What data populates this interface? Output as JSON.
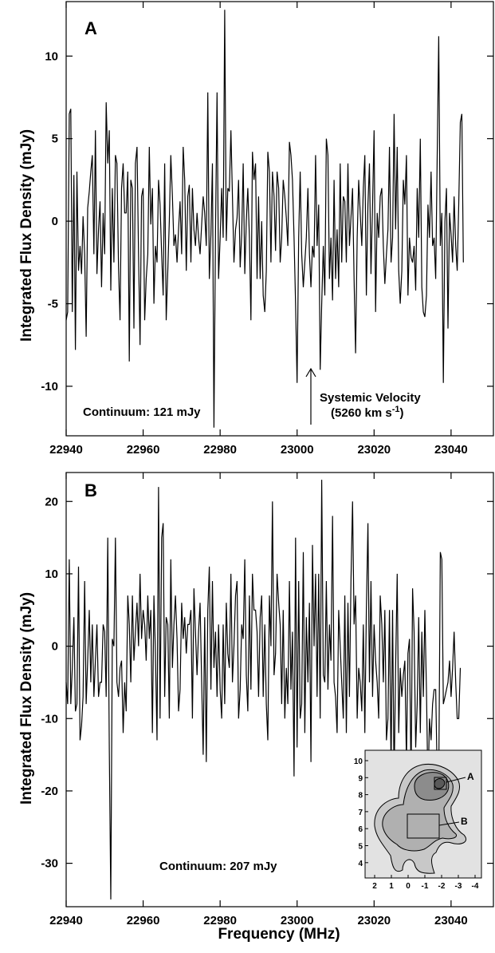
{
  "figure": {
    "xlabel": "Frequency (MHz)",
    "ylabel": "Integrated Flux Density (mJy)"
  },
  "chart_data": [
    {
      "type": "line",
      "panel": "A",
      "ylabel": "Integrated Flux Density (mJy)",
      "xlim": [
        22940,
        23051
      ],
      "ylim": [
        -13,
        13.3
      ],
      "xticks": [
        22940,
        22960,
        22980,
        23000,
        23020,
        23040
      ],
      "yticks": [
        -10,
        -5,
        0,
        5,
        10
      ],
      "xtick_labels": [
        "22940",
        "22960",
        "22980",
        "23000",
        "23020",
        "23040"
      ],
      "ytick_labels": [
        "-10",
        "-5",
        "0",
        "5",
        "10"
      ],
      "continuum": "Continuum: 121 mJy",
      "systemic_velocity": {
        "x": 23003,
        "label_line1": "Systemic Velocity",
        "label_line2": "(5260 km s",
        "superscript": "-1",
        "close": ")"
      },
      "x_start": 22940,
      "x_step": 0.4,
      "values": [
        -6.0,
        -5.5,
        6.5,
        6.8,
        -5.5,
        2.8,
        -7.8,
        3.0,
        -3.0,
        -1.5,
        -3.2,
        0.3,
        -2.0,
        -7.0,
        0.8,
        1.8,
        3.0,
        4.0,
        -2.0,
        5.5,
        -3.2,
        -0.5,
        1.2,
        -4.0,
        0.5,
        -2.0,
        7.2,
        3.5,
        5.5,
        -4.2,
        2.0,
        -2.5,
        4.0,
        3.5,
        -2.8,
        -6.0,
        2.0,
        3.5,
        0.5,
        0.5,
        3.0,
        -8.5,
        2.5,
        2.0,
        -6.5,
        3.5,
        4.5,
        -2.0,
        -7.5,
        1.5,
        2.0,
        -6.0,
        -3.5,
        -2.0,
        4.5,
        -0.2,
        2.0,
        -5.0,
        -1.5,
        -2.5,
        2.5,
        1.0,
        -2.0,
        -4.5,
        3.5,
        -6.0,
        -3.0,
        0.0,
        4.0,
        1.5,
        -1.5,
        -0.8,
        -2.5,
        -0.5,
        1.2,
        -2.0,
        4.5,
        2.5,
        -3.0,
        1.5,
        2.2,
        -2.5,
        2.0,
        -0.5,
        -1.5,
        0.5,
        -1.0,
        -2.0,
        -0.2,
        1.5,
        0.5,
        -1.5,
        7.8,
        -3.5,
        -0.8,
        3.5,
        -12.5,
        -0.5,
        7.8,
        -3.5,
        -1.0,
        2.0,
        -1.0,
        12.8,
        -1.2,
        2.0,
        1.8,
        5.5,
        1.5,
        -2.5,
        -0.5,
        0.2,
        2.5,
        -2.8,
        -0.8,
        3.5,
        -3.2,
        0.0,
        2.0,
        -1.0,
        -6.0,
        4.2,
        2.5,
        3.5,
        -3.5,
        1.5,
        -3.5,
        0.0,
        -4.5,
        -5.5,
        -3.0,
        4.2,
        3.0,
        -2.5,
        3.0,
        1.5,
        -1.8,
        3.0,
        2.0,
        -2.5,
        -1.0,
        2.5,
        1.5,
        0.2,
        -1.5,
        4.8,
        4.0,
        2.5,
        -1.0,
        -5.0,
        -9.8,
        -1.0,
        3.0,
        -2.0,
        -4.0,
        -2.5,
        -1.0,
        2.0,
        -2.0,
        -4.0,
        -1.5,
        -2.2,
        4.0,
        -1.5,
        1.0,
        -9.0,
        -5.0,
        -1.5,
        -4.5,
        5.0,
        4.0,
        -3.5,
        -1.0,
        -4.8,
        2.5,
        -3.5,
        -0.5,
        -4.0,
        3.5,
        -2.5,
        1.5,
        1.2,
        -2.5,
        3.5,
        -1.5,
        0.2,
        2.0,
        -3.5,
        -8.0,
        -1.0,
        2.5,
        0.5,
        -1.5,
        2.0,
        4.0,
        -4.5,
        1.0,
        3.5,
        -3.2,
        1.0,
        5.5,
        -5.5,
        0.5,
        -1.0,
        1.5,
        2.0,
        -1.5,
        -3.8,
        -2.0,
        -0.5,
        4.5,
        -2.5,
        -1.0,
        6.5,
        -0.5,
        4.5,
        -3.0,
        -5.0,
        -3.0,
        2.5,
        1.0,
        4.0,
        -4.5,
        -1.0,
        -2.2,
        -2.5,
        -1.5,
        -4.2,
        2.0,
        -1.0,
        5.0,
        -4.0,
        -5.5,
        -5.8,
        -4.5,
        1.0,
        -1.0,
        3.0,
        -1.5,
        -1.0,
        -3.5,
        4.0,
        11.2,
        -1.5,
        0.5,
        -9.8,
        0.0,
        2.0,
        -6.5,
        0.5,
        -0.8,
        -2.5,
        1.5,
        -1.5,
        -3.0,
        1.0,
        6.0,
        6.5,
        -2.5
      ]
    },
    {
      "type": "line",
      "panel": "B",
      "ylabel": "Integrated Flux Density (mJy)",
      "xlabel": "Frequency (MHz)",
      "xlim": [
        22940,
        23051
      ],
      "ylim": [
        -36,
        24
      ],
      "xticks": [
        22940,
        22960,
        22980,
        23000,
        23020,
        23040
      ],
      "yticks": [
        -30,
        -20,
        -10,
        0,
        10,
        20
      ],
      "xtick_labels": [
        "22940",
        "22960",
        "22980",
        "23000",
        "23020",
        "23040"
      ],
      "ytick_labels": [
        "-30",
        "-20",
        "-10",
        "0",
        "10",
        "20"
      ],
      "continuum": "Continuum: 207 mJy",
      "x_start": 22940,
      "x_step": 0.4,
      "values": [
        -5,
        -8,
        12,
        -8,
        -3,
        4,
        -9,
        -8,
        11,
        -13,
        -11,
        -7,
        9,
        -8,
        -2,
        5,
        -5,
        3,
        -7,
        -2,
        3,
        -7,
        -5,
        -5,
        3,
        2,
        -7,
        15,
        -14,
        -35,
        1,
        0,
        15,
        -5,
        -7,
        -3,
        -2,
        -12,
        -5,
        -9,
        7,
        3,
        -5,
        7,
        -2,
        2,
        6,
        0,
        10,
        1,
        5,
        3,
        -2,
        7,
        1,
        5,
        -12,
        7,
        -1,
        -13,
        22,
        -10,
        15,
        17,
        -7,
        4,
        3,
        -10,
        12,
        -3,
        3,
        7,
        1,
        -9,
        -6,
        6,
        1,
        4,
        -1,
        3,
        3,
        5,
        -10,
        8,
        2,
        -4,
        2,
        6,
        -5,
        -15,
        4,
        -16,
        5,
        11,
        -6,
        9,
        -3,
        2,
        -7,
        3,
        -6,
        -10,
        3,
        -8,
        6,
        -1,
        -3,
        10,
        -5,
        0,
        7,
        9,
        -10,
        -6,
        3,
        1,
        12,
        -4,
        -9,
        7,
        -6,
        10,
        5,
        5,
        2,
        -7,
        4,
        7,
        -7,
        3,
        -8,
        -13,
        7,
        0,
        20,
        -4,
        -1,
        10,
        6,
        3,
        -8,
        5,
        -10,
        -3,
        -8,
        9,
        -6,
        2,
        -18,
        15,
        -14,
        9,
        -10,
        -8,
        13,
        -12,
        4,
        -5,
        6,
        -16,
        14,
        0,
        10,
        -7,
        10,
        -10,
        23,
        -4,
        -5,
        9,
        -6,
        3,
        -2,
        18,
        -5,
        -7,
        -12,
        5,
        0,
        -5,
        -10,
        7,
        -12,
        6,
        -7,
        9,
        20,
        3,
        7,
        -10,
        -3,
        -5,
        -9,
        3,
        -12,
        5,
        17,
        -5,
        9,
        -7,
        3,
        -2,
        -5,
        -10,
        7,
        3,
        -5,
        5,
        -13,
        -10,
        5,
        -17,
        5,
        -19,
        -3,
        10,
        -12,
        -3,
        -7,
        -4,
        -2,
        -16,
        -1,
        1,
        -19,
        8,
        2,
        -14,
        -8,
        4,
        -12,
        2,
        -7,
        5,
        -6,
        -20,
        -10,
        -13,
        -8,
        -6,
        -6,
        -18,
        -19,
        13,
        12,
        -8,
        -7,
        -6,
        -5,
        -2,
        -7,
        -3,
        2,
        -5,
        -10,
        -10,
        -3
      ]
    }
  ],
  "inset": {
    "yticks": [
      "10",
      "9",
      "8",
      "7",
      "6",
      "5",
      "4"
    ],
    "xticks": [
      "2",
      "1",
      "0",
      "-1",
      "-2",
      "-3",
      "-4"
    ],
    "box_a_label": "A",
    "box_b_label": "B"
  }
}
